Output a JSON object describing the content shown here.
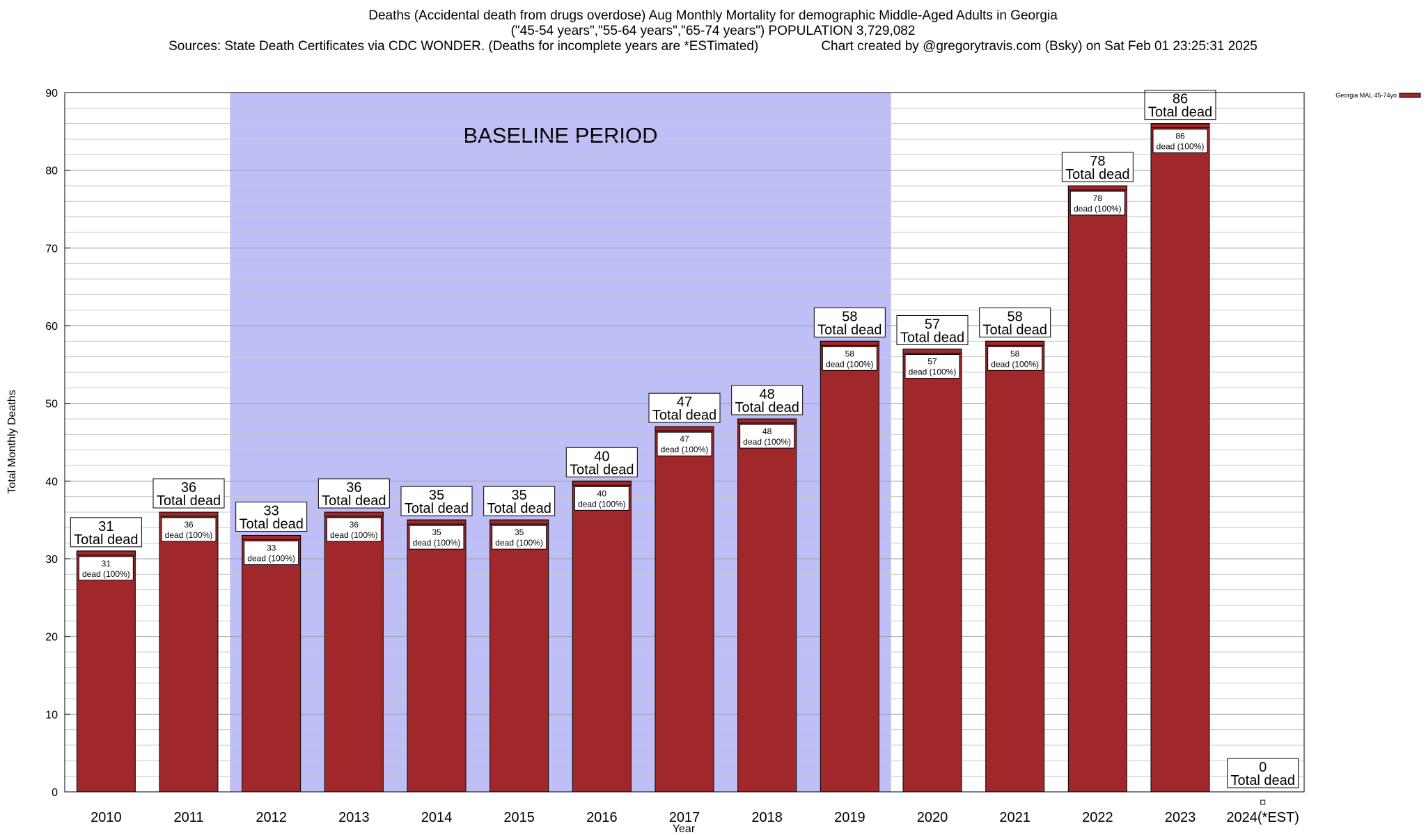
{
  "title": {
    "line1": "Deaths (Accidental death from drugs overdose) Aug Monthly Mortality for demographic Middle-Aged Adults in Georgia",
    "line2": "(\"45-54 years\",\"55-64 years\",\"65-74 years\") POPULATION 3,729,082",
    "sources": "Sources: State Death Certificates via CDC WONDER. (Deaths for incomplete years are *ESTimated)",
    "credit": "Chart created by @gregorytravis.com (Bsky) on Sat Feb 01 23:25:31 2025"
  },
  "colors": {
    "bar": "#a0282a",
    "baseline_band": "#bfbff7",
    "grid": "#c8c8c8"
  },
  "chart_data": {
    "type": "bar",
    "title": "Deaths (Accidental death from drugs overdose) Aug Monthly Mortality for demographic Middle-Aged Adults in Georgia",
    "xlabel": "Year",
    "ylabel": "Total Monthly Deaths",
    "ylim": [
      0,
      90
    ],
    "yticks": [
      0,
      10,
      20,
      30,
      40,
      50,
      60,
      70,
      80,
      90
    ],
    "grid": true,
    "legend": {
      "placement": "top-right",
      "entries": [
        "Georgia MAL 45-74yo"
      ]
    },
    "baseline_band": {
      "label": "BASELINE PERIOD",
      "from": "2012",
      "to": "2019"
    },
    "categories": [
      "2010",
      "2011",
      "2012",
      "2013",
      "2014",
      "2015",
      "2016",
      "2017",
      "2018",
      "2019",
      "2020",
      "2021",
      "2022",
      "2023",
      "2024(*EST)"
    ],
    "series": [
      {
        "name": "Georgia MAL 45-74yo",
        "values": [
          31,
          36,
          33,
          36,
          35,
          35,
          40,
          47,
          48,
          58,
          57,
          58,
          78,
          86,
          0
        ]
      }
    ],
    "total_label": "Total dead",
    "inner_label_suffix": "dead (100%)"
  }
}
